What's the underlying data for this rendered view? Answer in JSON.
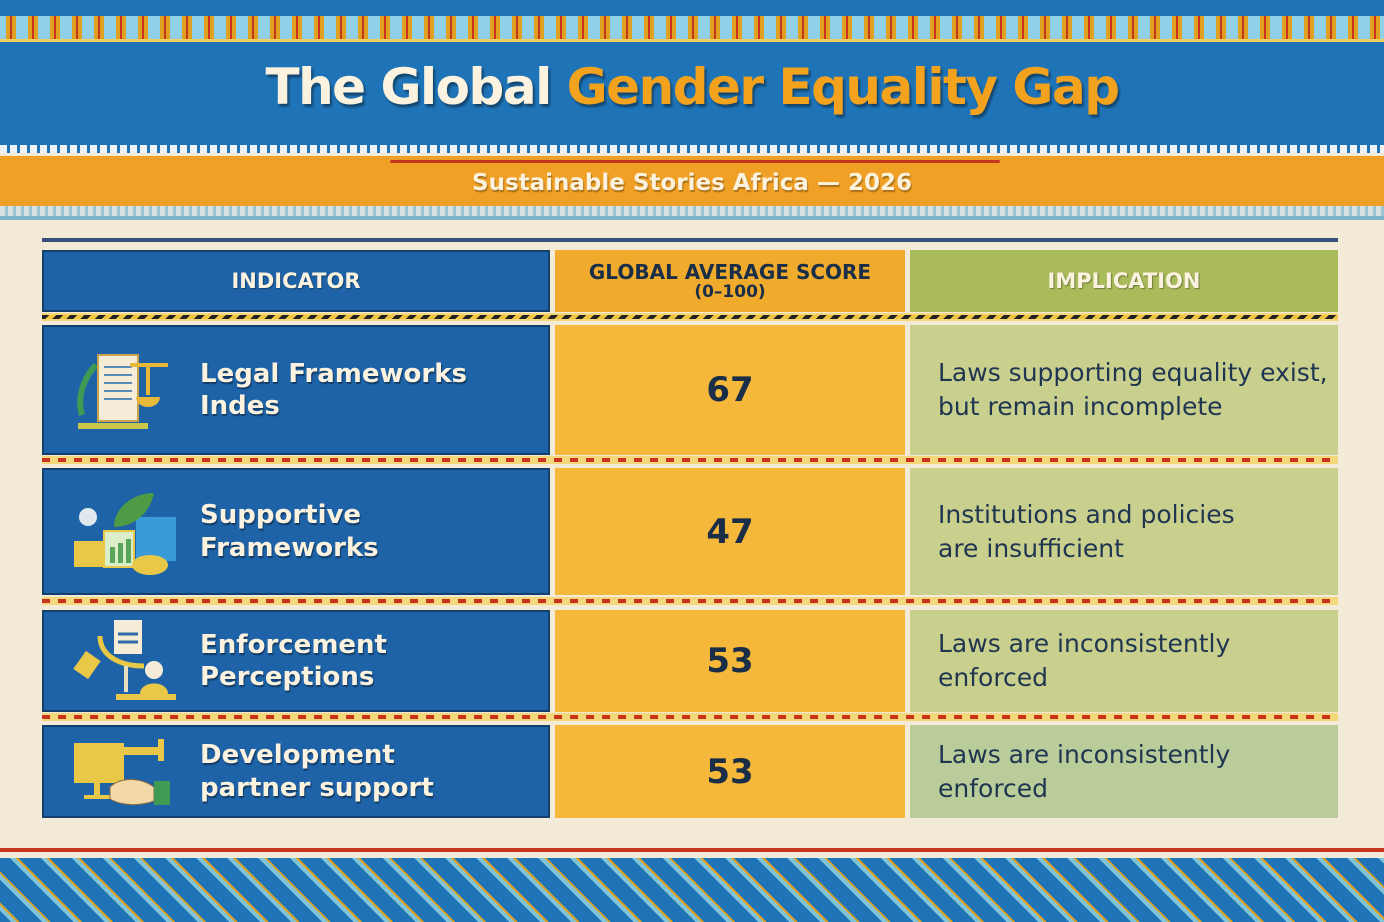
{
  "header": {
    "title_part1": "The Global",
    "title_part2": "Gender Equality Gap",
    "subtitle": "Sustainable Stories Africa — 2026"
  },
  "table": {
    "columns": [
      "INDICATOR",
      "GLOBAL AVERAGE SCORE",
      "(0–100)",
      "IMPLICATION"
    ],
    "rows": [
      {
        "indicator": "Legal Frameworks Indes",
        "score": "67",
        "implication": "Laws supporting equality exist, but remain incomplete",
        "icon": "legal-document-scale-icon"
      },
      {
        "indicator": "Supportive Frameworks",
        "score": "47",
        "implication": "Institutions and policies are insufficient",
        "icon": "growth-chart-leaf-icon"
      },
      {
        "indicator": "Enforcement Perceptions",
        "score": "53",
        "implication": "Laws are inconsistently enforced",
        "icon": "enforcement-scale-icon"
      },
      {
        "indicator": "Development partner support",
        "score": "53",
        "implication": "Laws are inconsistently enforced",
        "icon": "partner-handshake-icon"
      }
    ]
  },
  "colors": {
    "blue": "#1e63a8",
    "orange": "#f0a024",
    "green": "#a9bb5a",
    "cream": "#f3ead8"
  }
}
